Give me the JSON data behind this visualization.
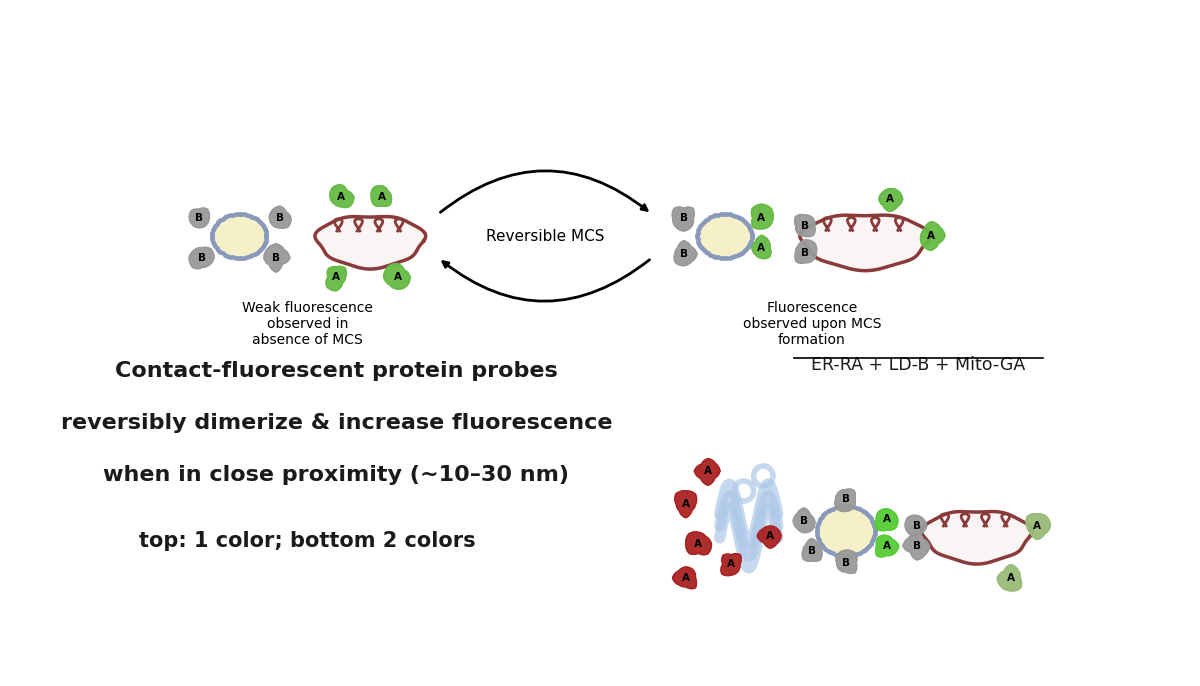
{
  "background_color": "#ffffff",
  "title_text_lines": [
    "Contact-fluorescent protein probes",
    "reversibly dimerize & increase fluorescence",
    "when in close proximity (∼10–30 nm)"
  ],
  "subtitle_text": "top: 1 color; bottom 2 colors",
  "label_weak": "Weak fluorescence\nobserved in\nabsence of MCS",
  "label_strong": "Fluorescence\nobserved upon MCS\nformation",
  "reversible_label": "Reversible MCS",
  "er_label": "ER-RA + LD-B + Mito-GA",
  "organelle_fill_yellow": "#f5f0c8",
  "organelle_border_yellow": "#c8b860",
  "mito_color": "#8B3A3A",
  "er_color": "#adc8e8",
  "dot_color": "#8899bb",
  "gray_protein_color": "#999999",
  "green_protein_color": "#66bb44",
  "red_protein_color": "#aa2222",
  "dark_green_protein_color": "#99bb77",
  "text_color": "#1a1a1a"
}
